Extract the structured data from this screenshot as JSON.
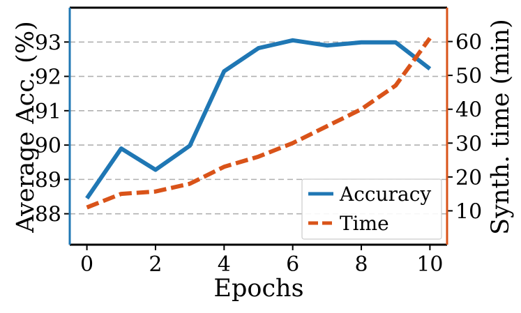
{
  "chart_data": {
    "type": "line",
    "xlabel": "Epochs",
    "ylabel_left": "Average Acc. (%)",
    "ylabel_right": "Synth. time (min)",
    "x": [
      0,
      1,
      2,
      3,
      4,
      5,
      6,
      7,
      8,
      9,
      10
    ],
    "x_ticks": [
      "0",
      "2",
      "4",
      "6",
      "8",
      "10"
    ],
    "left_ticks": [
      "88",
      "89",
      "90",
      "91",
      "92",
      "93"
    ],
    "right_ticks": [
      "10",
      "20",
      "30",
      "40",
      "50",
      "60"
    ],
    "xlim": [
      -0.5,
      10.5
    ],
    "ylim_left": [
      87.1,
      94.0
    ],
    "ylim_right": [
      0,
      70
    ],
    "grid": true,
    "legend_position": "bottom-right",
    "series": [
      {
        "name": "Accuracy",
        "axis": "left",
        "color": "#1f77b4",
        "style": "solid",
        "values": [
          88.45,
          89.9,
          89.28,
          89.98,
          92.15,
          92.82,
          93.05,
          92.9,
          92.99,
          92.99,
          92.22
        ]
      },
      {
        "name": "Time",
        "axis": "right",
        "color": "#d95319",
        "style": "dashed",
        "values": [
          11,
          15,
          15.7,
          18,
          23,
          26,
          30,
          35,
          40,
          47,
          61
        ]
      }
    ],
    "left_axis_color": "#1f77b4",
    "right_axis_color": "#d95319"
  }
}
